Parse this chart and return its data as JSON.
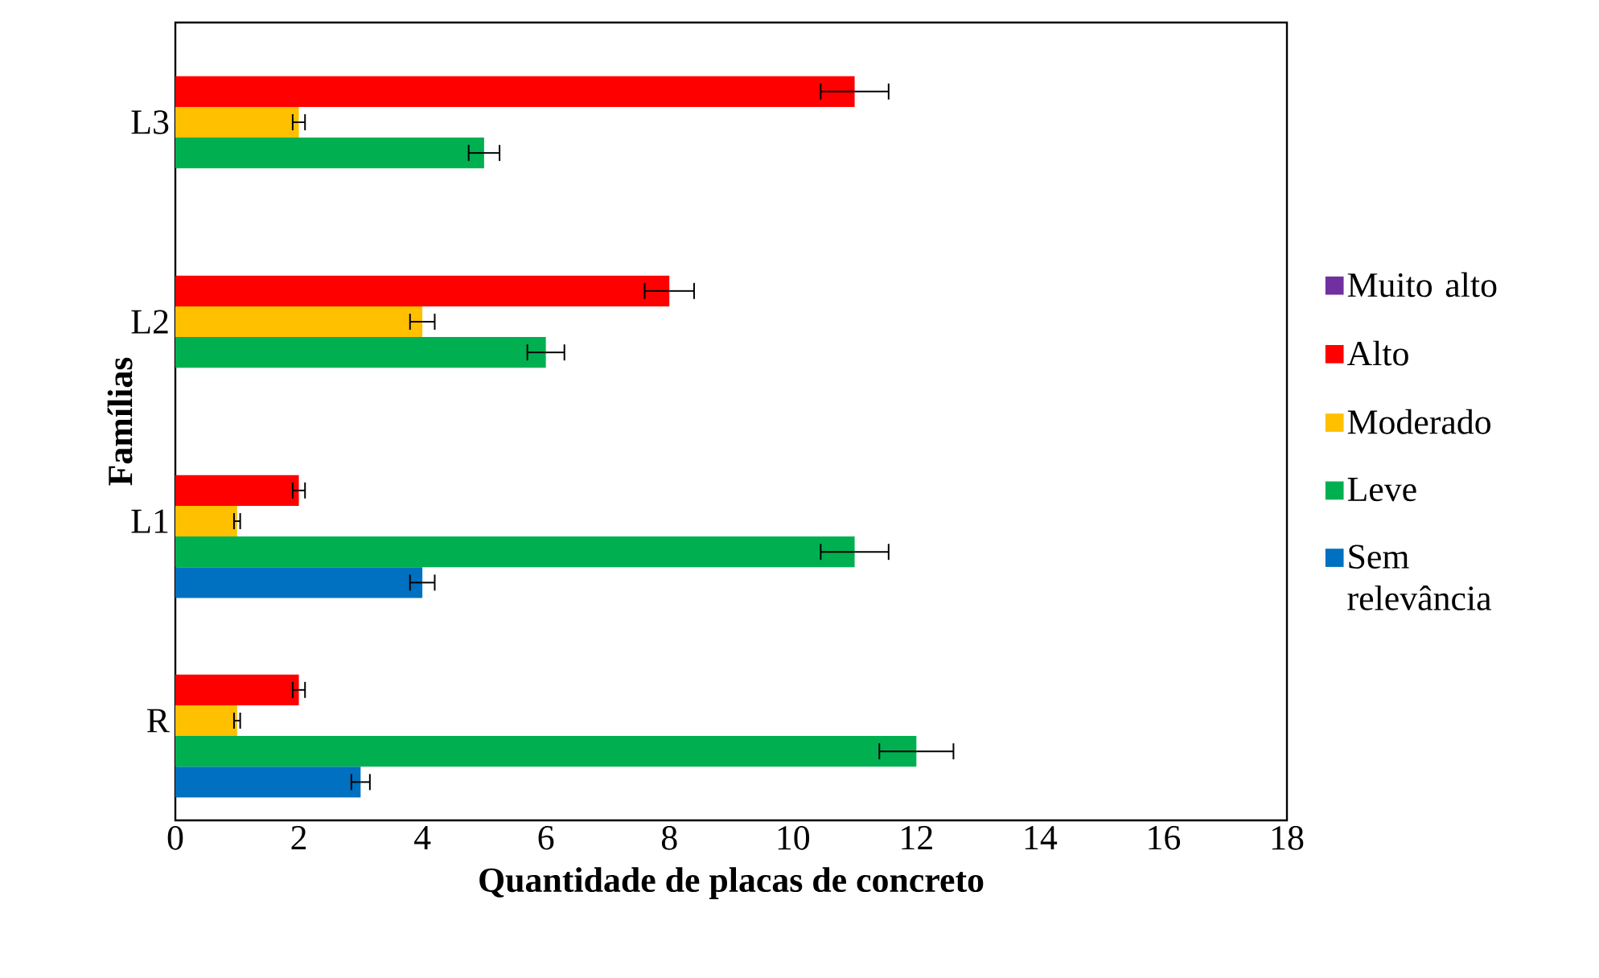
{
  "chart_data": {
    "type": "bar",
    "orientation": "horizontal",
    "xlabel": "Quantidade de placas de concreto",
    "ylabel": "Famílias",
    "categories": [
      "L3",
      "L2",
      "L1",
      "R"
    ],
    "series": [
      {
        "name": "Sem relevância",
        "color": "#0070c0",
        "values": [
          null,
          null,
          4,
          3
        ],
        "errors": [
          null,
          null,
          0.2,
          0.15
        ]
      },
      {
        "name": "Leve",
        "color": "#00b050",
        "values": [
          5,
          6,
          11,
          12
        ],
        "errors": [
          0.25,
          0.3,
          0.55,
          0.6
        ]
      },
      {
        "name": "Moderado",
        "color": "#ffc000",
        "values": [
          2,
          4,
          1,
          1
        ],
        "errors": [
          0.1,
          0.2,
          0.05,
          0.05
        ]
      },
      {
        "name": "Alto",
        "color": "#ff0000",
        "values": [
          11,
          8,
          2,
          2
        ],
        "errors": [
          0.55,
          0.4,
          0.1,
          0.1
        ]
      },
      {
        "name": "Muito alto",
        "color": "#7030a0",
        "values": [
          null,
          null,
          null,
          null
        ]
      }
    ],
    "xlim": [
      0,
      18
    ],
    "xticks": [
      0,
      2,
      4,
      6,
      8,
      10,
      12,
      14,
      16,
      18
    ],
    "legend": "right",
    "grid": false
  }
}
